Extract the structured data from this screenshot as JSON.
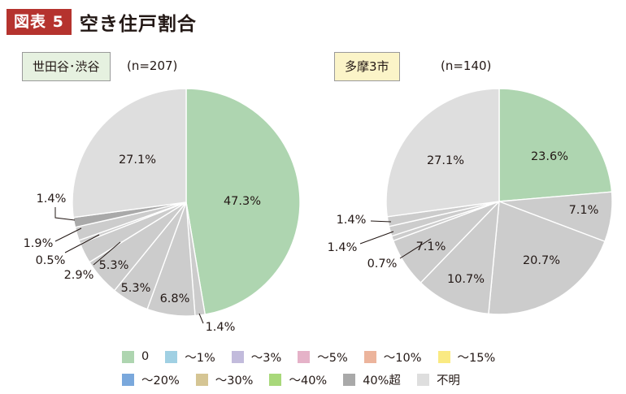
{
  "header": {
    "badge": "図表 5",
    "title": "空き住戸割合"
  },
  "colors": {
    "0": "#aed5b0",
    "~1%": "#a0d0e3",
    "~3%": "#c2bbdc",
    "~5%": "#e5b2c8",
    "~10%": "#ecb49c",
    "~15%": "#faea82",
    "~20%": "#7aa8dc",
    "~30%": "#d5c594",
    "~40%": "#a8d87a",
    "40%超": "#a9a9a9",
    "不明": "#dedede"
  },
  "legend": {
    "rows": [
      [
        {
          "label": "0",
          "color": "#aed5b0"
        },
        {
          "label": "～1%",
          "color": "#a0d0e3"
        },
        {
          "label": "～3%",
          "color": "#c2bbdc"
        },
        {
          "label": "～5%",
          "color": "#e5b2c8"
        },
        {
          "label": "～10%",
          "color": "#ecb49c"
        },
        {
          "label": "～15%",
          "color": "#faea82"
        }
      ],
      [
        {
          "label": "～20%",
          "color": "#7aa8dc"
        },
        {
          "label": "～30%",
          "color": "#d5c594"
        },
        {
          "label": "～40%",
          "color": "#a8d87a"
        },
        {
          "label": "40%超",
          "color": "#a9a9a9"
        },
        {
          "label": "不明",
          "color": "#dedede"
        }
      ]
    ]
  },
  "chart_data": [
    {
      "type": "pie",
      "title": "世田谷･渋谷",
      "n_label": "(n=207)",
      "slices": [
        {
          "category": "0",
          "value": 47.3,
          "label": "47.3%"
        },
        {
          "category": "～1%",
          "value": 1.4,
          "label": "1.4%"
        },
        {
          "category": "～3%",
          "value": 6.8,
          "label": "6.8%"
        },
        {
          "category": "～5%",
          "value": 5.3,
          "label": "5.3%"
        },
        {
          "category": "～10%",
          "value": 5.3,
          "label": "5.3%"
        },
        {
          "category": "～15%",
          "value": 2.9,
          "label": "2.9%"
        },
        {
          "category": "～20%",
          "value": 0.5,
          "label": "0.5%"
        },
        {
          "category": "～30%",
          "value": 1.9,
          "label": "1.9%"
        },
        {
          "category": "40%超",
          "value": 1.4,
          "label": "1.4%"
        },
        {
          "category": "不明",
          "value": 27.1,
          "label": "27.1%"
        }
      ]
    },
    {
      "type": "pie",
      "title": "多摩3市",
      "n_label": "(n=140)",
      "slices": [
        {
          "category": "0",
          "value": 23.6,
          "label": "23.6%"
        },
        {
          "category": "～1%",
          "value": 7.1,
          "label": "7.1%"
        },
        {
          "category": "～3%",
          "value": 20.7,
          "label": "20.7%"
        },
        {
          "category": "～5%",
          "value": 10.7,
          "label": "10.7%"
        },
        {
          "category": "～10%",
          "value": 7.1,
          "label": "7.1%"
        },
        {
          "category": "～15%",
          "value": 0.7,
          "label": "0.7%"
        },
        {
          "category": "～20%",
          "value": 1.4,
          "label": "1.4%"
        },
        {
          "category": "～30%",
          "value": 1.4,
          "label": "1.4%"
        },
        {
          "category": "不明",
          "value": 27.1,
          "label": "27.1%"
        }
      ]
    }
  ]
}
